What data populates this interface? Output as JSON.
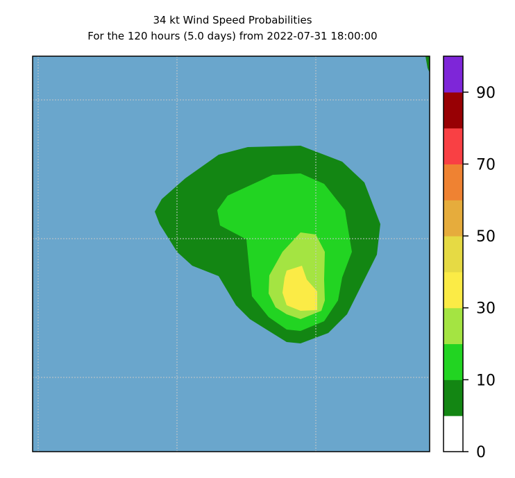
{
  "chart_data": {
    "type": "contourf",
    "title": "34 kt Wind Speed Probabilities",
    "subtitle": "For the 120 hours (5.0 days) from 2022-07-31 18:00:00",
    "background_color": "#6aa6cc",
    "grid": true,
    "colorbar": {
      "boundaries": [
        0,
        5,
        10,
        20,
        30,
        40,
        50,
        60,
        70,
        80,
        90,
        100
      ],
      "colors": [
        "#ffffff",
        "#138613",
        "#22d422",
        "#a4e442",
        "#fbeb46",
        "#e6da44",
        "#e6ac3c",
        "#ef8232",
        "#f94044",
        "#980004",
        "#7e26d8"
      ],
      "tick_labels": [
        "0",
        "10",
        "30",
        "50",
        "70",
        "90"
      ],
      "tick_values": [
        0,
        10,
        30,
        50,
        70,
        90
      ]
    },
    "contour_levels_shown": [
      5,
      10,
      20,
      30
    ],
    "max_region_label": "30-40%"
  }
}
